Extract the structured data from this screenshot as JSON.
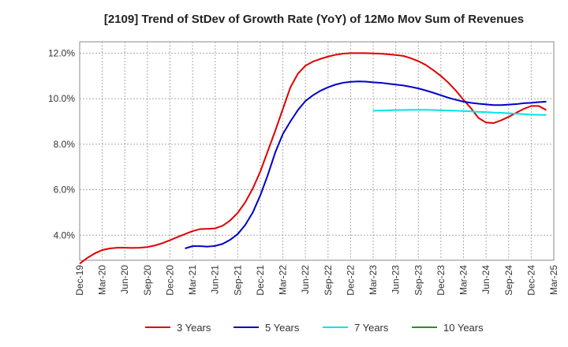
{
  "chart_data": {
    "type": "line",
    "title": "[2109]  Trend of StDev of Growth Rate (YoY) of 12Mo Mov Sum of Revenues",
    "xlabel": "",
    "ylabel": "",
    "grid": true,
    "legend_position": "bottom",
    "x_tick_labels": [
      "Dec-19",
      "Mar-20",
      "Jun-20",
      "Sep-20",
      "Dec-20",
      "Mar-21",
      "Jun-21",
      "Sep-21",
      "Dec-21",
      "Mar-22",
      "Jun-22",
      "Sep-22",
      "Dec-22",
      "Mar-23",
      "Jun-23",
      "Sep-23",
      "Dec-23",
      "Mar-24",
      "Jun-24",
      "Sep-24",
      "Dec-24",
      "Mar-25"
    ],
    "y_tick_labels": [
      "4.0%",
      "6.0%",
      "8.0%",
      "10.0%",
      "12.0%"
    ],
    "y_ticks": [
      4,
      6,
      8,
      10,
      12
    ],
    "ylim": [
      2.9,
      12.5
    ],
    "x_range_months": [
      0,
      63
    ],
    "series": [
      {
        "name": "3 Years",
        "color": "#e00000",
        "points": [
          [
            0,
            2.75
          ],
          [
            1,
            3.0
          ],
          [
            2,
            3.2
          ],
          [
            3,
            3.35
          ],
          [
            4,
            3.42
          ],
          [
            5,
            3.45
          ],
          [
            6,
            3.45
          ],
          [
            7,
            3.44
          ],
          [
            8,
            3.45
          ],
          [
            9,
            3.48
          ],
          [
            10,
            3.55
          ],
          [
            11,
            3.65
          ],
          [
            12,
            3.78
          ],
          [
            13,
            3.92
          ],
          [
            14,
            4.05
          ],
          [
            15,
            4.18
          ],
          [
            16,
            4.27
          ],
          [
            17,
            4.28
          ],
          [
            18,
            4.3
          ],
          [
            19,
            4.42
          ],
          [
            20,
            4.65
          ],
          [
            21,
            4.98
          ],
          [
            22,
            5.45
          ],
          [
            23,
            6.05
          ],
          [
            24,
            6.8
          ],
          [
            25,
            7.7
          ],
          [
            26,
            8.6
          ],
          [
            27,
            9.55
          ],
          [
            28,
            10.5
          ],
          [
            29,
            11.1
          ],
          [
            30,
            11.45
          ],
          [
            31,
            11.63
          ],
          [
            32,
            11.75
          ],
          [
            33,
            11.85
          ],
          [
            34,
            11.93
          ],
          [
            35,
            11.98
          ],
          [
            36,
            12.0
          ],
          [
            37,
            12.0
          ],
          [
            38,
            12.0
          ],
          [
            39,
            11.99
          ],
          [
            40,
            11.98
          ],
          [
            41,
            11.95
          ],
          [
            42,
            11.92
          ],
          [
            43,
            11.88
          ],
          [
            44,
            11.78
          ],
          [
            45,
            11.65
          ],
          [
            46,
            11.48
          ],
          [
            47,
            11.25
          ],
          [
            48,
            11.0
          ],
          [
            49,
            10.7
          ],
          [
            50,
            10.35
          ],
          [
            51,
            9.95
          ],
          [
            52,
            9.58
          ],
          [
            53,
            9.15
          ],
          [
            54,
            8.95
          ],
          [
            55,
            8.93
          ],
          [
            56,
            9.05
          ],
          [
            57,
            9.2
          ],
          [
            58,
            9.38
          ],
          [
            59,
            9.55
          ],
          [
            60,
            9.68
          ],
          [
            61,
            9.68
          ],
          [
            62,
            9.5
          ]
        ]
      },
      {
        "name": "5 Years",
        "color": "#0000c8",
        "points": [
          [
            14,
            3.42
          ],
          [
            15,
            3.52
          ],
          [
            16,
            3.52
          ],
          [
            17,
            3.5
          ],
          [
            18,
            3.53
          ],
          [
            19,
            3.62
          ],
          [
            20,
            3.8
          ],
          [
            21,
            4.05
          ],
          [
            22,
            4.45
          ],
          [
            23,
            5.0
          ],
          [
            24,
            5.75
          ],
          [
            25,
            6.65
          ],
          [
            26,
            7.65
          ],
          [
            27,
            8.45
          ],
          [
            28,
            9.0
          ],
          [
            29,
            9.5
          ],
          [
            30,
            9.9
          ],
          [
            31,
            10.15
          ],
          [
            32,
            10.35
          ],
          [
            33,
            10.5
          ],
          [
            34,
            10.62
          ],
          [
            35,
            10.7
          ],
          [
            36,
            10.74
          ],
          [
            37,
            10.76
          ],
          [
            38,
            10.75
          ],
          [
            39,
            10.72
          ],
          [
            40,
            10.7
          ],
          [
            41,
            10.66
          ],
          [
            42,
            10.62
          ],
          [
            43,
            10.58
          ],
          [
            44,
            10.52
          ],
          [
            45,
            10.45
          ],
          [
            46,
            10.36
          ],
          [
            47,
            10.26
          ],
          [
            48,
            10.15
          ],
          [
            49,
            10.04
          ],
          [
            50,
            9.95
          ],
          [
            51,
            9.87
          ],
          [
            52,
            9.82
          ],
          [
            53,
            9.78
          ],
          [
            54,
            9.75
          ],
          [
            55,
            9.72
          ],
          [
            56,
            9.72
          ],
          [
            57,
            9.74
          ],
          [
            58,
            9.76
          ],
          [
            59,
            9.8
          ],
          [
            60,
            9.82
          ],
          [
            61,
            9.85
          ],
          [
            62,
            9.87
          ]
        ]
      },
      {
        "name": "7 Years",
        "color": "#00e5e5",
        "points": [
          [
            39,
            9.47
          ],
          [
            40,
            9.48
          ],
          [
            41,
            9.49
          ],
          [
            42,
            9.5
          ],
          [
            43,
            9.5
          ],
          [
            44,
            9.51
          ],
          [
            45,
            9.51
          ],
          [
            46,
            9.51
          ],
          [
            47,
            9.5
          ],
          [
            48,
            9.49
          ],
          [
            49,
            9.48
          ],
          [
            50,
            9.47
          ],
          [
            51,
            9.46
          ],
          [
            52,
            9.44
          ],
          [
            53,
            9.42
          ],
          [
            54,
            9.41
          ],
          [
            55,
            9.39
          ],
          [
            56,
            9.38
          ],
          [
            57,
            9.36
          ],
          [
            58,
            9.34
          ],
          [
            59,
            9.32
          ],
          [
            60,
            9.3
          ],
          [
            61,
            9.29
          ],
          [
            62,
            9.28
          ]
        ]
      },
      {
        "name": "10 Years",
        "color": "#2e8b20",
        "points": []
      }
    ]
  }
}
